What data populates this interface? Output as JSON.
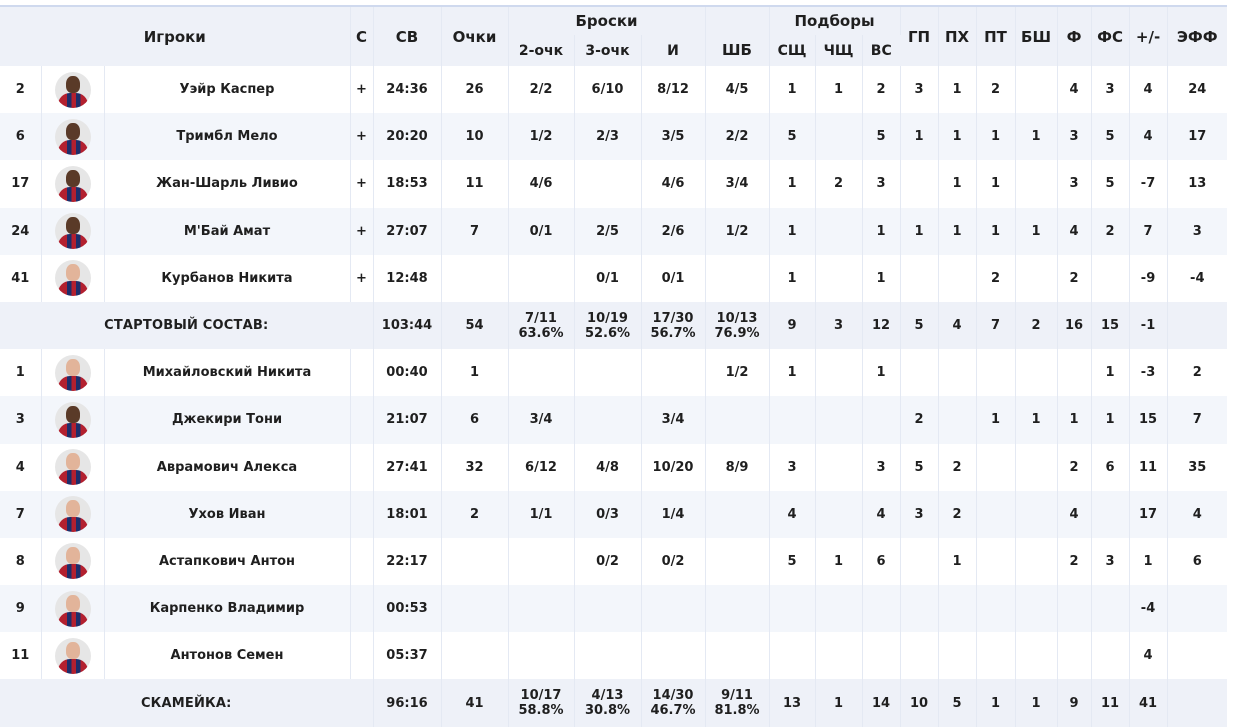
{
  "header": {
    "players": "Игроки",
    "starter": "С",
    "minutes": "СВ",
    "points": "Очки",
    "shots_group": "Броски",
    "two_pt": "2-очк",
    "three_pt": "3-очк",
    "fg": "И",
    "ft": "ШБ",
    "rebounds_group": "Подборы",
    "oreb": "СЩ",
    "dreb": "ЧЩ",
    "treb": "ВС",
    "ast": "ГП",
    "tov": "ПХ",
    "stl": "ПТ",
    "blk": "БШ",
    "fouls": "Ф",
    "fouls_drawn": "ФС",
    "plus_minus": "+/-",
    "eff": "ЭФФ"
  },
  "starters": [
    {
      "num": "2",
      "skin": "dark",
      "name": "Уэйр Каспер",
      "starter": "+",
      "min": "24:36",
      "pts": "26",
      "p2": "2/2",
      "p3": "6/10",
      "fg": "8/12",
      "ft": "4/5",
      "oreb": "1",
      "dreb": "1",
      "treb": "2",
      "ast": "3",
      "tov": "1",
      "stl": "2",
      "blk": "",
      "pf": "4",
      "fd": "3",
      "pm": "4",
      "eff": "24"
    },
    {
      "num": "6",
      "skin": "dark",
      "name": "Тримбл Мело",
      "starter": "+",
      "min": "20:20",
      "pts": "10",
      "p2": "1/2",
      "p3": "2/3",
      "fg": "3/5",
      "ft": "2/2",
      "oreb": "5",
      "dreb": "",
      "treb": "5",
      "ast": "1",
      "tov": "1",
      "stl": "1",
      "blk": "1",
      "pf": "3",
      "fd": "5",
      "pm": "4",
      "eff": "17"
    },
    {
      "num": "17",
      "skin": "dark",
      "name": "Жан-Шарль Ливио",
      "starter": "+",
      "min": "18:53",
      "pts": "11",
      "p2": "4/6",
      "p3": "",
      "fg": "4/6",
      "ft": "3/4",
      "oreb": "1",
      "dreb": "2",
      "treb": "3",
      "ast": "",
      "tov": "1",
      "stl": "1",
      "blk": "",
      "pf": "3",
      "fd": "5",
      "pm": "-7",
      "eff": "13"
    },
    {
      "num": "24",
      "skin": "dark",
      "name": "М'Бай Амат",
      "starter": "+",
      "min": "27:07",
      "pts": "7",
      "p2": "0/1",
      "p3": "2/5",
      "fg": "2/6",
      "ft": "1/2",
      "oreb": "1",
      "dreb": "",
      "treb": "1",
      "ast": "1",
      "tov": "1",
      "stl": "1",
      "blk": "1",
      "pf": "4",
      "fd": "2",
      "pm": "7",
      "eff": "3"
    },
    {
      "num": "41",
      "skin": "light",
      "name": "Курбанов Никита",
      "starter": "+",
      "min": "12:48",
      "pts": "",
      "p2": "",
      "p3": "0/1",
      "fg": "0/1",
      "ft": "",
      "oreb": "1",
      "dreb": "",
      "treb": "1",
      "ast": "",
      "tov": "",
      "stl": "2",
      "blk": "",
      "pf": "2",
      "fd": "",
      "pm": "-9",
      "eff": "-4"
    }
  ],
  "starters_total": {
    "label": "СТАРТОВЫЙ СОСТАВ:",
    "min": "103:44",
    "pts": "54",
    "p2": "7/11",
    "p2_pct": "63.6%",
    "p3": "10/19",
    "p3_pct": "52.6%",
    "fg": "17/30",
    "fg_pct": "56.7%",
    "ft": "10/13",
    "ft_pct": "76.9%",
    "oreb": "9",
    "dreb": "3",
    "treb": "12",
    "ast": "5",
    "tov": "4",
    "stl": "7",
    "blk": "2",
    "pf": "16",
    "fd": "15",
    "pm": "-1",
    "eff": ""
  },
  "bench": [
    {
      "num": "1",
      "skin": "light",
      "name": "Михайловский Никита",
      "starter": "",
      "min": "00:40",
      "pts": "1",
      "p2": "",
      "p3": "",
      "fg": "",
      "ft": "1/2",
      "oreb": "1",
      "dreb": "",
      "treb": "1",
      "ast": "",
      "tov": "",
      "stl": "",
      "blk": "",
      "pf": "",
      "fd": "1",
      "pm": "-3",
      "eff": "2"
    },
    {
      "num": "3",
      "skin": "dark",
      "name": "Джекири Тони",
      "starter": "",
      "min": "21:07",
      "pts": "6",
      "p2": "3/4",
      "p3": "",
      "fg": "3/4",
      "ft": "",
      "oreb": "",
      "dreb": "",
      "treb": "",
      "ast": "2",
      "tov": "",
      "stl": "1",
      "blk": "1",
      "pf": "1",
      "fd": "1",
      "pm": "15",
      "eff": "7"
    },
    {
      "num": "4",
      "skin": "light",
      "name": "Аврамович Алекса",
      "starter": "",
      "min": "27:41",
      "pts": "32",
      "p2": "6/12",
      "p3": "4/8",
      "fg": "10/20",
      "ft": "8/9",
      "oreb": "3",
      "dreb": "",
      "treb": "3",
      "ast": "5",
      "tov": "2",
      "stl": "",
      "blk": "",
      "pf": "2",
      "fd": "6",
      "pm": "11",
      "eff": "35"
    },
    {
      "num": "7",
      "skin": "light",
      "name": "Ухов Иван",
      "starter": "",
      "min": "18:01",
      "pts": "2",
      "p2": "1/1",
      "p3": "0/3",
      "fg": "1/4",
      "ft": "",
      "oreb": "4",
      "dreb": "",
      "treb": "4",
      "ast": "3",
      "tov": "2",
      "stl": "",
      "blk": "",
      "pf": "4",
      "fd": "",
      "pm": "17",
      "eff": "4"
    },
    {
      "num": "8",
      "skin": "light",
      "name": "Астапкович Антон",
      "starter": "",
      "min": "22:17",
      "pts": "",
      "p2": "",
      "p3": "0/2",
      "fg": "0/2",
      "ft": "",
      "oreb": "5",
      "dreb": "1",
      "treb": "6",
      "ast": "",
      "tov": "1",
      "stl": "",
      "blk": "",
      "pf": "2",
      "fd": "3",
      "pm": "1",
      "eff": "6"
    },
    {
      "num": "9",
      "skin": "light",
      "name": "Карпенко Владимир",
      "starter": "",
      "min": "00:53",
      "pts": "",
      "p2": "",
      "p3": "",
      "fg": "",
      "ft": "",
      "oreb": "",
      "dreb": "",
      "treb": "",
      "ast": "",
      "tov": "",
      "stl": "",
      "blk": "",
      "pf": "",
      "fd": "",
      "pm": "-4",
      "eff": ""
    },
    {
      "num": "11",
      "skin": "light",
      "name": "Антонов Семен",
      "starter": "",
      "min": "05:37",
      "pts": "",
      "p2": "",
      "p3": "",
      "fg": "",
      "ft": "",
      "oreb": "",
      "dreb": "",
      "treb": "",
      "ast": "",
      "tov": "",
      "stl": "",
      "blk": "",
      "pf": "",
      "fd": "",
      "pm": "4",
      "eff": ""
    }
  ],
  "bench_total": {
    "label": "СКАМЕЙКА:",
    "min": "96:16",
    "pts": "41",
    "p2": "10/17",
    "p2_pct": "58.8%",
    "p3": "4/13",
    "p3_pct": "30.8%",
    "fg": "14/30",
    "fg_pct": "46.7%",
    "ft": "9/11",
    "ft_pct": "81.8%",
    "oreb": "13",
    "dreb": "1",
    "treb": "14",
    "ast": "10",
    "tov": "5",
    "stl": "1",
    "blk": "1",
    "pf": "9",
    "fd": "11",
    "pm": "41",
    "eff": ""
  }
}
